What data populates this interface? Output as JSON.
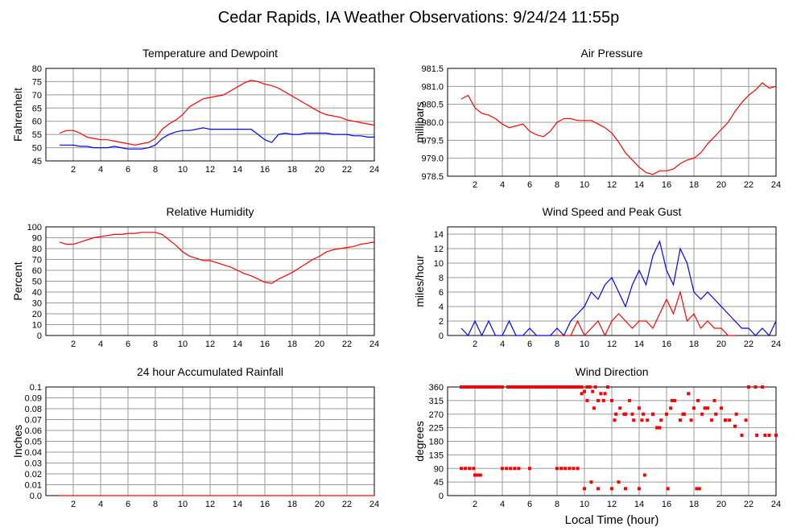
{
  "page": {
    "title": "Cedar Rapids, IA Weather Observations: 9/24/24 11:55p",
    "xlabel": "Local Time (hour)"
  },
  "colors": {
    "red": "#ff0000",
    "blue": "#0000ff",
    "grid": "#999999",
    "frame": "#000000"
  },
  "chart_data": [
    {
      "id": "temp",
      "type": "line",
      "title": "Temperature and Dewpoint",
      "ylabel": "Fahrenheit",
      "xlim": [
        0,
        24
      ],
      "ylim": [
        45,
        80
      ],
      "xticks": [
        2,
        4,
        6,
        8,
        10,
        12,
        14,
        16,
        18,
        20,
        22,
        24
      ],
      "yticks": [
        45,
        50,
        55,
        60,
        65,
        70,
        75,
        80
      ],
      "ytick_labels": [
        "45",
        "50",
        "55",
        "60",
        "65",
        "70",
        "75",
        "80"
      ],
      "grid": true,
      "series": [
        {
          "color": "#ff0000",
          "x": [
            1.0,
            1.5,
            2.0,
            2.5,
            3.0,
            3.5,
            4.0,
            4.5,
            5.0,
            5.5,
            6.0,
            6.5,
            7.0,
            7.5,
            8.0,
            8.5,
            9.0,
            9.5,
            10.0,
            10.5,
            11.0,
            11.5,
            12.0,
            12.5,
            13.0,
            13.5,
            14.0,
            14.5,
            15.0,
            15.5,
            16.0,
            16.5,
            17.0,
            17.5,
            18.0,
            18.5,
            19.0,
            19.5,
            20.0,
            20.5,
            21.0,
            21.5,
            22.0,
            22.5,
            23.0,
            23.5,
            24.0
          ],
          "y": [
            55.5,
            56.5,
            56.5,
            55.5,
            54,
            53.5,
            53,
            53,
            52.5,
            52,
            51.5,
            51,
            51.5,
            52,
            53.5,
            57,
            59,
            60.5,
            62.5,
            65.5,
            67,
            68.5,
            69,
            69.5,
            70,
            71.5,
            73,
            74.5,
            75.5,
            75,
            74,
            73.5,
            72.5,
            71,
            69.5,
            68,
            66.5,
            65,
            63.5,
            62.5,
            62,
            61.5,
            60.5,
            60,
            59.5,
            59,
            58.5
          ]
        },
        {
          "color": "#0000ff",
          "x": [
            1.0,
            1.5,
            2.0,
            2.5,
            3.0,
            3.5,
            4.0,
            4.5,
            5.0,
            5.5,
            6.0,
            6.5,
            7.0,
            7.5,
            8.0,
            8.5,
            9.0,
            9.5,
            10.0,
            10.5,
            11.0,
            11.5,
            12.0,
            12.5,
            13.0,
            13.5,
            14.0,
            14.5,
            15.0,
            15.5,
            16.0,
            16.5,
            17.0,
            17.5,
            18.0,
            18.5,
            19.0,
            19.5,
            20.0,
            20.5,
            21.0,
            21.5,
            22.0,
            22.5,
            23.0,
            23.5,
            24.0
          ],
          "y": [
            51,
            51,
            51,
            50.5,
            50.5,
            50,
            50,
            50,
            50.5,
            50,
            49.5,
            49.5,
            49.5,
            50,
            51,
            53.5,
            55,
            56,
            56.5,
            56.5,
            57,
            57.5,
            57,
            57,
            57,
            57,
            57,
            57,
            57,
            55,
            53,
            52,
            55,
            55.5,
            55,
            55,
            55.5,
            55.5,
            55.5,
            55.5,
            55,
            55,
            55,
            54.5,
            54.5,
            54,
            54
          ]
        }
      ]
    },
    {
      "id": "pressure",
      "type": "line",
      "title": "Air Pressure",
      "ylabel": "millibars",
      "xlim": [
        0,
        24
      ],
      "ylim": [
        978.5,
        981.5
      ],
      "xticks": [
        2,
        4,
        6,
        8,
        10,
        12,
        14,
        16,
        18,
        20,
        22,
        24
      ],
      "yticks": [
        978.5,
        979.0,
        979.5,
        980.0,
        980.5,
        981.0,
        981.5
      ],
      "ytick_labels": [
        "978.5",
        "979.0",
        "979.5",
        "980.0",
        "980.5",
        "981.0",
        "981.5"
      ],
      "grid": true,
      "series": [
        {
          "color": "#ff0000",
          "x": [
            1.0,
            1.5,
            2.0,
            2.5,
            3.0,
            3.5,
            4.0,
            4.5,
            5.0,
            5.5,
            6.0,
            6.5,
            7.0,
            7.5,
            8.0,
            8.5,
            9.0,
            9.5,
            10.0,
            10.5,
            11.0,
            11.5,
            12.0,
            12.5,
            13.0,
            13.5,
            14.0,
            14.5,
            15.0,
            15.5,
            16.0,
            16.5,
            17.0,
            17.5,
            18.0,
            18.5,
            19.0,
            19.5,
            20.0,
            20.5,
            21.0,
            21.5,
            22.0,
            22.5,
            23.0,
            23.5,
            24.0
          ],
          "y": [
            980.65,
            980.75,
            980.4,
            980.25,
            980.2,
            980.1,
            979.95,
            979.85,
            979.9,
            979.95,
            979.75,
            979.65,
            979.6,
            979.75,
            980.0,
            980.1,
            980.1,
            980.05,
            980.05,
            980.05,
            979.95,
            979.85,
            979.7,
            979.45,
            979.15,
            978.95,
            978.75,
            978.6,
            978.55,
            978.65,
            978.65,
            978.7,
            978.85,
            978.95,
            979.0,
            979.15,
            979.4,
            979.6,
            979.8,
            980.0,
            980.3,
            980.55,
            980.75,
            980.9,
            981.1,
            980.95,
            981.0
          ]
        }
      ]
    },
    {
      "id": "humidity",
      "type": "line",
      "title": "Relative Humidity",
      "ylabel": "Percent",
      "xlim": [
        0,
        24
      ],
      "ylim": [
        0,
        100
      ],
      "xticks": [
        2,
        4,
        6,
        8,
        10,
        12,
        14,
        16,
        18,
        20,
        22,
        24
      ],
      "yticks": [
        0,
        10,
        20,
        30,
        40,
        50,
        60,
        70,
        80,
        90,
        100
      ],
      "ytick_labels": [
        "0",
        "10",
        "20",
        "30",
        "40",
        "50",
        "60",
        "70",
        "80",
        "90",
        "100"
      ],
      "grid": true,
      "series": [
        {
          "color": "#ff0000",
          "x": [
            1.0,
            1.5,
            2.0,
            2.5,
            3.0,
            3.5,
            4.0,
            4.5,
            5.0,
            5.5,
            6.0,
            6.5,
            7.0,
            7.5,
            8.0,
            8.5,
            9.0,
            9.5,
            10.0,
            10.5,
            11.0,
            11.5,
            12.0,
            12.5,
            13.0,
            13.5,
            14.0,
            14.5,
            15.0,
            15.5,
            16.0,
            16.5,
            17.0,
            17.5,
            18.0,
            18.5,
            19.0,
            19.5,
            20.0,
            20.5,
            21.0,
            21.5,
            22.0,
            22.5,
            23.0,
            23.5,
            24.0
          ],
          "y": [
            86,
            84,
            84,
            86,
            88,
            90,
            91,
            92,
            93,
            93,
            94,
            94,
            95,
            95,
            95,
            93,
            88,
            83,
            77,
            73,
            71,
            69,
            69,
            67,
            65,
            63,
            60,
            57,
            55,
            52,
            49,
            48,
            52,
            55,
            58,
            62,
            66,
            70,
            73,
            77,
            79,
            80,
            81,
            82,
            84,
            85,
            86
          ]
        }
      ]
    },
    {
      "id": "wind-speed",
      "type": "line",
      "title": "Wind Speed and Peak Gust",
      "ylabel": "miles/hour",
      "xlim": [
        0,
        24
      ],
      "ylim": [
        0,
        15
      ],
      "xticks": [
        2,
        4,
        6,
        8,
        10,
        12,
        14,
        16,
        18,
        20,
        22,
        24
      ],
      "yticks": [
        0,
        2,
        4,
        6,
        8,
        10,
        12,
        14
      ],
      "ytick_labels": [
        "0",
        "2",
        "4",
        "6",
        "8",
        "10",
        "12",
        "14"
      ],
      "grid": true,
      "series": [
        {
          "color": "#ff0000",
          "x": [
            8.0,
            9.0,
            9.5,
            10.0,
            10.5,
            11.0,
            11.5,
            12.0,
            12.5,
            13.0,
            13.5,
            14.0,
            14.5,
            15.0,
            15.5,
            16.0,
            16.5,
            17.0,
            17.5,
            18.0,
            18.5,
            19.0,
            19.5,
            20.0,
            20.5,
            21.0
          ],
          "y": [
            0,
            0,
            2,
            0,
            1,
            2,
            0,
            2,
            3,
            2,
            1,
            2,
            2,
            1,
            3,
            5,
            3,
            6,
            2,
            3,
            1,
            2,
            1,
            1,
            0,
            0
          ]
        },
        {
          "color": "#0000ff",
          "x": [
            1.0,
            1.5,
            2.0,
            2.5,
            3.0,
            3.5,
            4.0,
            4.5,
            5.0,
            5.5,
            6.0,
            6.5,
            7.0,
            7.5,
            8.0,
            8.5,
            9.0,
            9.5,
            10.0,
            10.5,
            11.0,
            11.5,
            12.0,
            12.5,
            13.0,
            13.5,
            14.0,
            14.5,
            15.0,
            15.5,
            16.0,
            16.5,
            17.0,
            17.5,
            18.0,
            18.5,
            19.0,
            19.5,
            20.0,
            20.5,
            21.0,
            21.5,
            22.0,
            22.5,
            23.0,
            23.5,
            24.0
          ],
          "y": [
            1,
            0,
            2,
            0,
            2,
            0,
            0,
            2,
            0,
            0,
            1,
            0,
            0,
            0,
            1,
            0,
            2,
            3,
            4,
            6,
            5,
            7,
            8,
            6,
            4,
            7,
            9,
            7,
            11,
            13,
            9,
            7,
            12,
            10,
            6,
            5,
            6,
            5,
            4,
            3,
            2,
            1,
            1,
            0,
            1,
            0,
            2
          ]
        }
      ]
    },
    {
      "id": "rain",
      "type": "line",
      "title": "24 hour Accumulated Rainfall",
      "ylabel": "Inches",
      "xlim": [
        0,
        24
      ],
      "ylim": [
        0,
        0.1
      ],
      "xticks": [
        2,
        4,
        6,
        8,
        10,
        12,
        14,
        16,
        18,
        20,
        22,
        24
      ],
      "yticks": [
        0.0,
        0.01,
        0.02,
        0.03,
        0.04,
        0.05,
        0.06,
        0.07,
        0.08,
        0.09,
        0.1
      ],
      "ytick_labels": [
        "0.0",
        "0.01",
        "0.02",
        "0.03",
        "0.04",
        "0.05",
        "0.06",
        "0.07",
        "0.08",
        "0.09",
        "0.1"
      ],
      "grid": true,
      "series": [
        {
          "color": "#ff0000",
          "x": [
            1.0,
            24.0
          ],
          "y": [
            0,
            0
          ]
        }
      ]
    },
    {
      "id": "wind-dir",
      "type": "scatter",
      "title": "Wind Direction",
      "ylabel": "degrees",
      "xlim": [
        0,
        24
      ],
      "ylim": [
        0,
        360
      ],
      "xticks": [
        2,
        4,
        6,
        8,
        10,
        12,
        14,
        16,
        18,
        20,
        22,
        24
      ],
      "yticks": [
        0,
        45,
        90,
        135,
        180,
        225,
        270,
        315,
        360
      ],
      "ytick_labels": [
        "0",
        "45",
        "90",
        "135",
        "180",
        "225",
        "270",
        "315",
        "360"
      ],
      "grid": true,
      "series": [
        {
          "color": "#ff0000",
          "x": [
            1.0,
            1.2,
            1.4,
            1.6,
            1.8,
            2.0,
            2.2,
            2.4,
            2.6,
            2.8,
            3.0,
            3.2,
            3.4,
            3.6,
            3.8,
            4.0,
            4.4,
            4.6,
            4.8,
            5.0,
            5.2,
            5.4,
            5.6,
            5.8,
            6.0,
            6.2,
            6.4,
            6.6,
            6.8,
            7.0,
            7.2,
            7.4,
            7.6,
            7.8,
            8.0,
            8.2,
            8.4,
            8.6,
            8.8,
            9.0,
            9.2,
            9.4,
            9.6,
            9.8,
            10.0,
            10.2,
            10.4,
            10.6,
            10.8,
            11.0,
            11.2,
            11.5,
            11.7,
            12.0,
            12.3,
            12.6,
            13.0,
            13.3,
            13.6,
            14.0,
            14.3,
            14.6,
            15.0,
            15.3,
            15.6,
            16.0,
            16.3,
            16.6,
            17.0,
            17.3,
            17.6,
            18.0,
            18.3,
            18.6,
            19.0,
            19.3,
            19.6,
            20.0,
            20.3,
            20.6,
            21.0,
            21.5,
            22.0,
            22.5,
            23.0,
            23.5,
            24.0,
            1.0,
            1.3,
            1.6,
            1.9,
            2.0,
            2.2,
            2.4,
            4.0,
            4.3,
            4.6,
            4.9,
            5.2,
            6.0,
            8.0,
            8.3,
            8.6,
            8.9,
            9.2,
            9.5,
            10.0,
            10.5,
            11.0,
            12.0,
            12.5,
            13.0,
            14.0,
            14.4,
            16.1,
            18.2,
            18.4,
            9.8,
            10.2,
            10.7,
            11.4,
            12.2,
            12.9,
            13.5,
            14.2,
            15.0,
            15.5,
            16.4,
            17.2,
            17.8,
            18.8,
            19.5,
            20.3,
            21.1,
            21.8,
            22.6,
            23.2,
            24.0
          ],
          "y": [
            360,
            360,
            360,
            360,
            360,
            360,
            360,
            360,
            360,
            360,
            360,
            360,
            360,
            360,
            360,
            360,
            360,
            360,
            360,
            360,
            360,
            360,
            360,
            360,
            360,
            360,
            360,
            360,
            360,
            360,
            360,
            360,
            360,
            360,
            360,
            360,
            360,
            360,
            360,
            360,
            360,
            360,
            360,
            360,
            345,
            360,
            360,
            345,
            360,
            315,
            338,
            338,
            360,
            315,
            270,
            290,
            270,
            315,
            250,
            290,
            270,
            250,
            270,
            225,
            250,
            270,
            290,
            315,
            250,
            270,
            338,
            290,
            315,
            270,
            290,
            250,
            270,
            290,
            250,
            250,
            230,
            200,
            360,
            360,
            360,
            200,
            200,
            90,
            90,
            90,
            90,
            68,
            68,
            68,
            90,
            90,
            90,
            90,
            90,
            90,
            90,
            90,
            90,
            90,
            90,
            90,
            23,
            45,
            23,
            23,
            45,
            23,
            23,
            68,
            23,
            23,
            23,
            338,
            315,
            290,
            315,
            250,
            270,
            270,
            250,
            270,
            225,
            315,
            270,
            250,
            290,
            315,
            250,
            270,
            250,
            200,
            200,
            200
          ]
        }
      ]
    }
  ]
}
